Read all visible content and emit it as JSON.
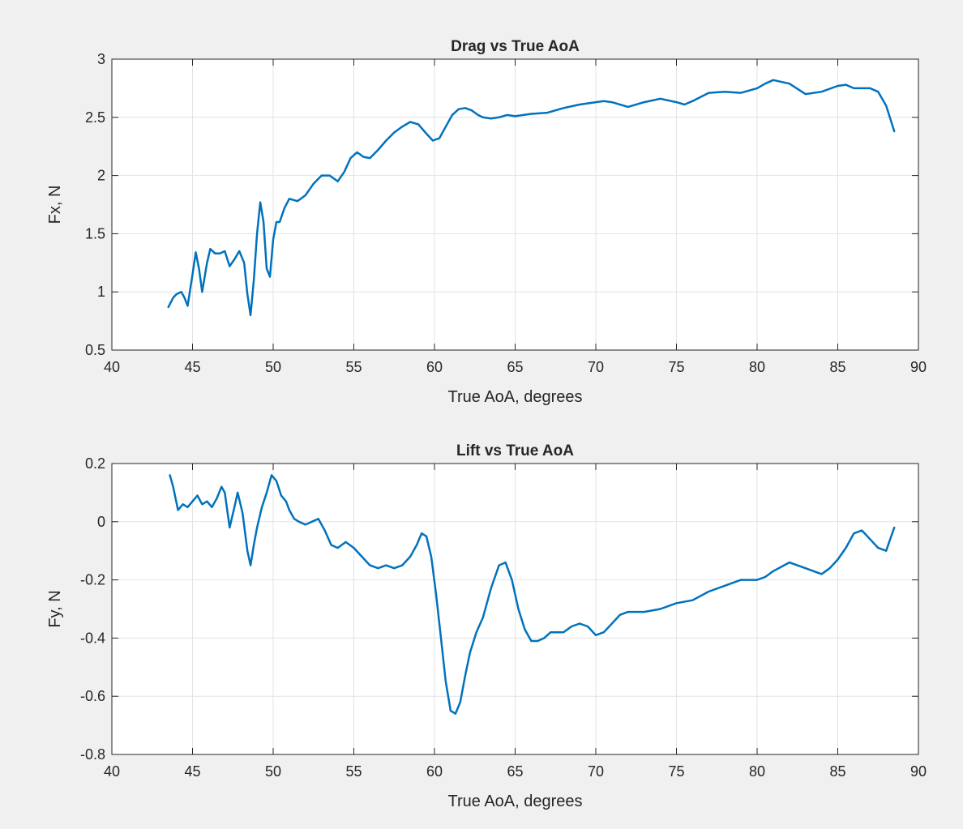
{
  "colors": {
    "background": "#f0f0f0",
    "axes": "#ffffff",
    "series": "#0072bd",
    "text": "#262626",
    "grid": "#e3e3e3"
  },
  "chart_data": [
    {
      "type": "line",
      "title": "Drag vs True AoA",
      "xlabel": "True AoA, degrees",
      "ylabel": "Fx, N",
      "xlim": [
        40,
        90
      ],
      "ylim": [
        0.5,
        3
      ],
      "xticks": [
        "40",
        "45",
        "50",
        "55",
        "60",
        "65",
        "70",
        "75",
        "80",
        "85",
        "90"
      ],
      "yticks": [
        "0.5",
        "1",
        "1.5",
        "2",
        "2.5",
        "3"
      ],
      "xtick_values": [
        40,
        45,
        50,
        55,
        60,
        65,
        70,
        75,
        80,
        85,
        90
      ],
      "ytick_values": [
        0.5,
        1,
        1.5,
        2,
        2.5,
        3
      ],
      "grid": true,
      "series": [
        {
          "x": [
            43.5,
            43.8,
            44.0,
            44.3,
            44.5,
            44.7,
            45.0,
            45.2,
            45.4,
            45.6,
            45.9,
            46.1,
            46.4,
            46.7,
            47.0,
            47.3,
            47.6,
            47.9,
            48.2,
            48.4,
            48.6,
            48.8,
            49.0,
            49.2,
            49.4,
            49.6,
            49.8,
            50.0,
            50.2,
            50.4,
            50.7,
            51.0,
            51.5,
            52.0,
            52.5,
            53.0,
            53.5,
            54.0,
            54.4,
            54.8,
            55.2,
            55.6,
            56.0,
            56.5,
            57.0,
            57.5,
            58.0,
            58.5,
            59.0,
            59.5,
            59.9,
            60.3,
            60.7,
            61.1,
            61.5,
            61.9,
            62.3,
            62.7,
            63.0,
            63.5,
            64.0,
            64.5,
            65.0,
            66.0,
            67.0,
            68.0,
            69.0,
            70.0,
            70.5,
            71.0,
            72.0,
            73.0,
            74.0,
            75.0,
            75.5,
            76.0,
            77.0,
            78.0,
            79.0,
            80.0,
            80.5,
            81.0,
            82.0,
            83.0,
            84.0,
            85.0,
            85.5,
            86.0,
            87.0,
            87.5,
            88.0,
            88.5
          ],
          "y": [
            0.87,
            0.95,
            0.98,
            1.0,
            0.95,
            0.88,
            1.15,
            1.34,
            1.2,
            1.0,
            1.25,
            1.37,
            1.33,
            1.33,
            1.35,
            1.22,
            1.28,
            1.35,
            1.25,
            0.98,
            0.8,
            1.1,
            1.5,
            1.77,
            1.6,
            1.2,
            1.13,
            1.45,
            1.6,
            1.6,
            1.72,
            1.8,
            1.78,
            1.83,
            1.93,
            2.0,
            2.0,
            1.95,
            2.03,
            2.15,
            2.2,
            2.16,
            2.15,
            2.22,
            2.3,
            2.37,
            2.42,
            2.46,
            2.44,
            2.36,
            2.3,
            2.32,
            2.42,
            2.52,
            2.57,
            2.58,
            2.56,
            2.52,
            2.5,
            2.49,
            2.5,
            2.52,
            2.51,
            2.53,
            2.54,
            2.58,
            2.61,
            2.63,
            2.64,
            2.63,
            2.59,
            2.63,
            2.66,
            2.63,
            2.61,
            2.64,
            2.71,
            2.72,
            2.71,
            2.75,
            2.79,
            2.82,
            2.79,
            2.7,
            2.72,
            2.77,
            2.78,
            2.75,
            2.75,
            2.72,
            2.6,
            2.38
          ]
        }
      ]
    },
    {
      "type": "line",
      "title": "Lift vs True AoA",
      "xlabel": "True AoA, degrees",
      "ylabel": "Fy, N",
      "xlim": [
        40,
        90
      ],
      "ylim": [
        -0.8,
        0.2
      ],
      "xticks": [
        "40",
        "45",
        "50",
        "55",
        "60",
        "65",
        "70",
        "75",
        "80",
        "85",
        "90"
      ],
      "yticks": [
        "-0.8",
        "-0.6",
        "-0.4",
        "-0.2",
        "0",
        "0.2"
      ],
      "xtick_values": [
        40,
        45,
        50,
        55,
        60,
        65,
        70,
        75,
        80,
        85,
        90
      ],
      "ytick_values": [
        -0.8,
        -0.6,
        -0.4,
        -0.2,
        0,
        0.2
      ],
      "grid": true,
      "series": [
        {
          "x": [
            43.6,
            43.8,
            44.1,
            44.4,
            44.7,
            45.0,
            45.3,
            45.6,
            45.9,
            46.2,
            46.5,
            46.8,
            47.0,
            47.3,
            47.6,
            47.8,
            48.1,
            48.4,
            48.6,
            48.8,
            49.0,
            49.3,
            49.6,
            49.9,
            50.2,
            50.5,
            50.8,
            51.0,
            51.3,
            51.6,
            52.0,
            52.4,
            52.8,
            53.2,
            53.6,
            54.0,
            54.5,
            55.0,
            55.5,
            56.0,
            56.5,
            57.0,
            57.5,
            58.0,
            58.5,
            58.9,
            59.2,
            59.5,
            59.8,
            60.1,
            60.4,
            60.7,
            61.0,
            61.3,
            61.6,
            61.9,
            62.2,
            62.6,
            63.0,
            63.5,
            64.0,
            64.4,
            64.8,
            65.2,
            65.6,
            66.0,
            66.4,
            66.8,
            67.2,
            67.6,
            68.0,
            68.5,
            69.0,
            69.5,
            70.0,
            70.5,
            71.0,
            71.5,
            72.0,
            73.0,
            74.0,
            75.0,
            76.0,
            77.0,
            78.0,
            79.0,
            80.0,
            80.5,
            81.0,
            82.0,
            83.0,
            83.5,
            84.0,
            84.5,
            85.0,
            85.5,
            86.0,
            86.5,
            87.0,
            87.5,
            88.0,
            88.5
          ],
          "y": [
            0.16,
            0.12,
            0.04,
            0.06,
            0.05,
            0.07,
            0.09,
            0.06,
            0.07,
            0.05,
            0.08,
            0.12,
            0.1,
            -0.02,
            0.05,
            0.1,
            0.03,
            -0.1,
            -0.15,
            -0.08,
            -0.02,
            0.05,
            0.1,
            0.16,
            0.14,
            0.09,
            0.07,
            0.04,
            0.01,
            0.0,
            -0.01,
            0.0,
            0.01,
            -0.03,
            -0.08,
            -0.09,
            -0.07,
            -0.09,
            -0.12,
            -0.15,
            -0.16,
            -0.15,
            -0.16,
            -0.15,
            -0.12,
            -0.08,
            -0.04,
            -0.05,
            -0.12,
            -0.25,
            -0.4,
            -0.55,
            -0.65,
            -0.66,
            -0.62,
            -0.53,
            -0.45,
            -0.38,
            -0.33,
            -0.23,
            -0.15,
            -0.14,
            -0.2,
            -0.3,
            -0.37,
            -0.41,
            -0.41,
            -0.4,
            -0.38,
            -0.38,
            -0.38,
            -0.36,
            -0.35,
            -0.36,
            -0.39,
            -0.38,
            -0.35,
            -0.32,
            -0.31,
            -0.31,
            -0.3,
            -0.28,
            -0.27,
            -0.24,
            -0.22,
            -0.2,
            -0.2,
            -0.19,
            -0.17,
            -0.14,
            -0.16,
            -0.17,
            -0.18,
            -0.16,
            -0.13,
            -0.09,
            -0.04,
            -0.03,
            -0.06,
            -0.09,
            -0.1,
            -0.02
          ]
        }
      ]
    }
  ]
}
